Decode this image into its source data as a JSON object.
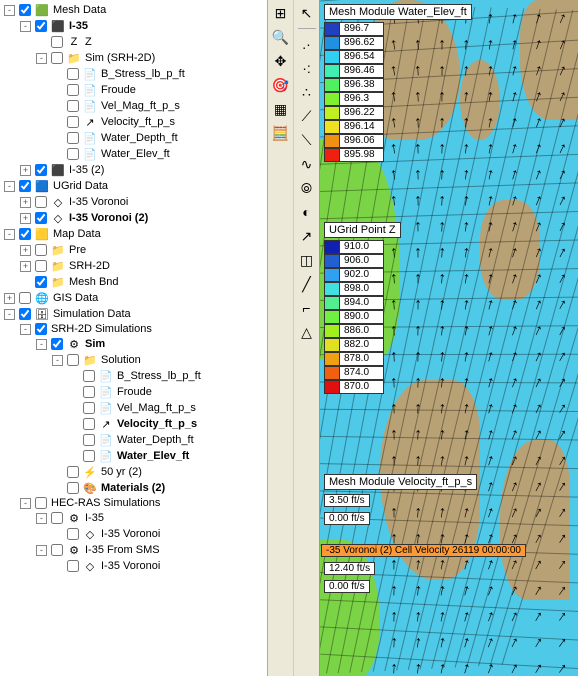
{
  "colors": {
    "panel_bg": "#ffffff",
    "toolbar_bg": "#ece9d8",
    "viewport_water": "#4ec9e8",
    "viewport_land": "#b8a175",
    "viewport_green": "#7bd445",
    "highlight": "#ff9933"
  },
  "tree": [
    {
      "depth": 0,
      "exp": "-",
      "chk": true,
      "icon": "🟩",
      "label": "Mesh Data",
      "bold": false
    },
    {
      "depth": 1,
      "exp": "-",
      "chk": true,
      "icon": "⬛",
      "label": "I-35",
      "bold": true
    },
    {
      "depth": 2,
      "exp": " ",
      "chk": false,
      "icon": "Z",
      "label": "Z",
      "bold": false
    },
    {
      "depth": 2,
      "exp": "-",
      "chk": false,
      "icon": "📁",
      "label": "Sim (SRH-2D)",
      "bold": false
    },
    {
      "depth": 3,
      "exp": " ",
      "chk": false,
      "icon": "📄",
      "label": "B_Stress_lb_p_ft",
      "bold": false
    },
    {
      "depth": 3,
      "exp": " ",
      "chk": false,
      "icon": "📄",
      "label": "Froude",
      "bold": false
    },
    {
      "depth": 3,
      "exp": " ",
      "chk": false,
      "icon": "📄",
      "label": "Vel_Mag_ft_p_s",
      "bold": false
    },
    {
      "depth": 3,
      "exp": " ",
      "chk": false,
      "icon": "↗",
      "label": "Velocity_ft_p_s",
      "bold": false
    },
    {
      "depth": 3,
      "exp": " ",
      "chk": false,
      "icon": "📄",
      "label": "Water_Depth_ft",
      "bold": false
    },
    {
      "depth": 3,
      "exp": " ",
      "chk": false,
      "icon": "📄",
      "label": "Water_Elev_ft",
      "bold": false
    },
    {
      "depth": 1,
      "exp": "+",
      "chk": true,
      "icon": "⬛",
      "label": "I-35 (2)",
      "bold": false
    },
    {
      "depth": 0,
      "exp": "-",
      "chk": true,
      "icon": "🟦",
      "label": "UGrid Data",
      "bold": false
    },
    {
      "depth": 1,
      "exp": "+",
      "chk": false,
      "icon": "◇",
      "label": "I-35 Voronoi",
      "bold": false
    },
    {
      "depth": 1,
      "exp": "+",
      "chk": true,
      "icon": "◇",
      "label": "I-35 Voronoi (2)",
      "bold": true
    },
    {
      "depth": 0,
      "exp": "-",
      "chk": true,
      "icon": "🟨",
      "label": "Map Data",
      "bold": false
    },
    {
      "depth": 1,
      "exp": "+",
      "chk": false,
      "icon": "📁",
      "label": "Pre",
      "bold": false
    },
    {
      "depth": 1,
      "exp": "+",
      "chk": false,
      "icon": "📁",
      "label": "SRH-2D",
      "bold": false
    },
    {
      "depth": 1,
      "exp": " ",
      "chk": true,
      "icon": "📁",
      "label": "Mesh Bnd",
      "bold": false
    },
    {
      "depth": 0,
      "exp": "+",
      "chk": false,
      "icon": "🌐",
      "label": "GIS Data",
      "bold": false
    },
    {
      "depth": 0,
      "exp": "-",
      "chk": true,
      "icon": "🗄",
      "label": "Simulation Data",
      "bold": false
    },
    {
      "depth": 1,
      "exp": "-",
      "chk": true,
      "icon": "",
      "label": "SRH-2D Simulations",
      "bold": false
    },
    {
      "depth": 2,
      "exp": "-",
      "chk": true,
      "icon": "⚙",
      "label": "Sim",
      "bold": true
    },
    {
      "depth": 3,
      "exp": "-",
      "chk": false,
      "icon": "📁",
      "label": "Solution",
      "bold": false
    },
    {
      "depth": 4,
      "exp": " ",
      "chk": false,
      "icon": "📄",
      "label": "B_Stress_lb_p_ft",
      "bold": false
    },
    {
      "depth": 4,
      "exp": " ",
      "chk": false,
      "icon": "📄",
      "label": "Froude",
      "bold": false
    },
    {
      "depth": 4,
      "exp": " ",
      "chk": false,
      "icon": "📄",
      "label": "Vel_Mag_ft_p_s",
      "bold": false
    },
    {
      "depth": 4,
      "exp": " ",
      "chk": false,
      "icon": "↗",
      "label": "Velocity_ft_p_s",
      "bold": true
    },
    {
      "depth": 4,
      "exp": " ",
      "chk": false,
      "icon": "📄",
      "label": "Water_Depth_ft",
      "bold": false
    },
    {
      "depth": 4,
      "exp": " ",
      "chk": false,
      "icon": "📄",
      "label": "Water_Elev_ft",
      "bold": true
    },
    {
      "depth": 3,
      "exp": " ",
      "chk": false,
      "icon": "⚡",
      "label": "50 yr (2)",
      "bold": false
    },
    {
      "depth": 3,
      "exp": " ",
      "chk": false,
      "icon": "🎨",
      "label": "Materials (2)",
      "bold": true
    },
    {
      "depth": 1,
      "exp": "-",
      "chk": false,
      "icon": "",
      "label": "HEC-RAS Simulations",
      "bold": false
    },
    {
      "depth": 2,
      "exp": "-",
      "chk": false,
      "icon": "⚙",
      "label": "I-35",
      "bold": false
    },
    {
      "depth": 3,
      "exp": " ",
      "chk": false,
      "icon": "◇",
      "label": "I-35 Voronoi",
      "bold": false
    },
    {
      "depth": 2,
      "exp": "-",
      "chk": false,
      "icon": "⚙",
      "label": "I-35 From SMS",
      "bold": false
    },
    {
      "depth": 3,
      "exp": " ",
      "chk": false,
      "icon": "◇",
      "label": "I-35 Voronoi",
      "bold": false
    }
  ],
  "toolbar1": [
    "⊞",
    "🔍",
    "✥",
    "🎯",
    "▦",
    "🧮"
  ],
  "toolbar2": [
    "↖",
    ".·",
    "·:",
    "∴",
    "⟋",
    "⟍",
    "∿",
    "⦾",
    "◐",
    "↗",
    "◫",
    "╱",
    "⌐",
    "△"
  ],
  "legend1": {
    "title": "Mesh Module Water_Elev_ft",
    "rows": [
      {
        "color": "#2040c0",
        "val": "896.7"
      },
      {
        "color": "#2090e0",
        "val": "896.62"
      },
      {
        "color": "#30d0f0",
        "val": "896.54"
      },
      {
        "color": "#40f0b0",
        "val": "896.46"
      },
      {
        "color": "#50f060",
        "val": "896.38"
      },
      {
        "color": "#80f030",
        "val": "896.3"
      },
      {
        "color": "#c0f020",
        "val": "896.22"
      },
      {
        "color": "#f0e020",
        "val": "896.14"
      },
      {
        "color": "#f09010",
        "val": "896.06"
      },
      {
        "color": "#f02010",
        "val": "895.98"
      }
    ]
  },
  "legend2": {
    "title": "UGrid Point Z",
    "rows": [
      {
        "color": "#1020b0",
        "val": "910.0"
      },
      {
        "color": "#2060d0",
        "val": "906.0"
      },
      {
        "color": "#30a0f0",
        "val": "902.0"
      },
      {
        "color": "#40e0e0",
        "val": "898.0"
      },
      {
        "color": "#50f090",
        "val": "894.0"
      },
      {
        "color": "#70f040",
        "val": "890.0"
      },
      {
        "color": "#a0f020",
        "val": "886.0"
      },
      {
        "color": "#e0e020",
        "val": "882.0"
      },
      {
        "color": "#f0a010",
        "val": "878.0"
      },
      {
        "color": "#f06010",
        "val": "874.0"
      },
      {
        "color": "#e01010",
        "val": "870.0"
      }
    ]
  },
  "velocity_title": "Mesh Module Velocity_ft_p_s",
  "velocity_scale": [
    "3.50 ft/s",
    "0.00 ft/s"
  ],
  "cell_velocity_bar": "-35 Voronoi (2) Cell Velocity 26119 00:00:00",
  "cell_velocity_scale": [
    "12.40 ft/s",
    "0.00 ft/s"
  ]
}
